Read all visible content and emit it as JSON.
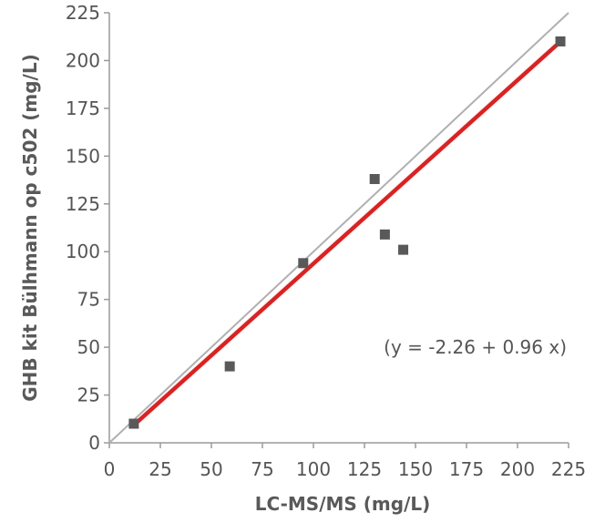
{
  "chart_data": {
    "type": "scatter",
    "xlabel": "LC-MS/MS (mg/L)",
    "ylabel": "GHB kit Bülhmann op c502 (mg/L)",
    "xlim": [
      0,
      225
    ],
    "ylim": [
      0,
      225
    ],
    "x_ticks": [
      0,
      25,
      50,
      75,
      100,
      125,
      150,
      175,
      200,
      225
    ],
    "y_ticks": [
      0,
      25,
      50,
      75,
      100,
      125,
      150,
      175,
      200,
      225
    ],
    "grid": false,
    "points": [
      {
        "x": 12,
        "y": 10
      },
      {
        "x": 59,
        "y": 40
      },
      {
        "x": 95,
        "y": 94
      },
      {
        "x": 130,
        "y": 138
      },
      {
        "x": 135,
        "y": 109
      },
      {
        "x": 144,
        "y": 101
      },
      {
        "x": 221,
        "y": 210
      }
    ],
    "identity_line": {
      "from": [
        0,
        0
      ],
      "to": [
        225,
        225
      ],
      "color": "#b0b0b0"
    },
    "regression_line": {
      "intercept": -2.26,
      "slope": 0.96,
      "x_range": [
        12,
        221
      ],
      "color": "#e02020"
    },
    "annotation": "(y = -2.26 + 0.96 x)",
    "point_color": "#595959"
  }
}
